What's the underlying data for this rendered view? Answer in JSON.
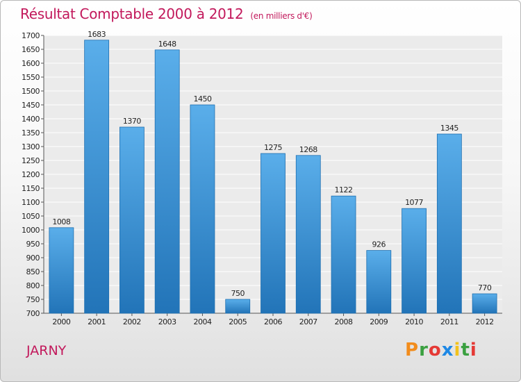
{
  "header": {
    "title": "Résultat Comptable 2000 à 2012",
    "unit": "(en milliers d'€)"
  },
  "footer": {
    "town": "JARNY",
    "brand": "Proxiti"
  },
  "colors": {
    "title": "#c2185b",
    "bar_light": "#5aaeea",
    "bar_dark": "#2274b8"
  },
  "chart_data": {
    "type": "bar",
    "title": "Résultat Comptable 2000 à 2012",
    "xlabel": "",
    "ylabel": "",
    "categories": [
      "2000",
      "2001",
      "2002",
      "2003",
      "2004",
      "2005",
      "2006",
      "2007",
      "2008",
      "2009",
      "2010",
      "2011",
      "2012"
    ],
    "values": [
      1008,
      1683,
      1370,
      1648,
      1450,
      750,
      1275,
      1268,
      1122,
      926,
      1077,
      1345,
      770
    ],
    "ylim": [
      700,
      1700
    ],
    "yticks": [
      700,
      750,
      800,
      850,
      900,
      950,
      1000,
      1050,
      1100,
      1150,
      1200,
      1250,
      1300,
      1350,
      1400,
      1450,
      1500,
      1550,
      1600,
      1650,
      1700
    ],
    "grid": true,
    "legend": "none"
  }
}
